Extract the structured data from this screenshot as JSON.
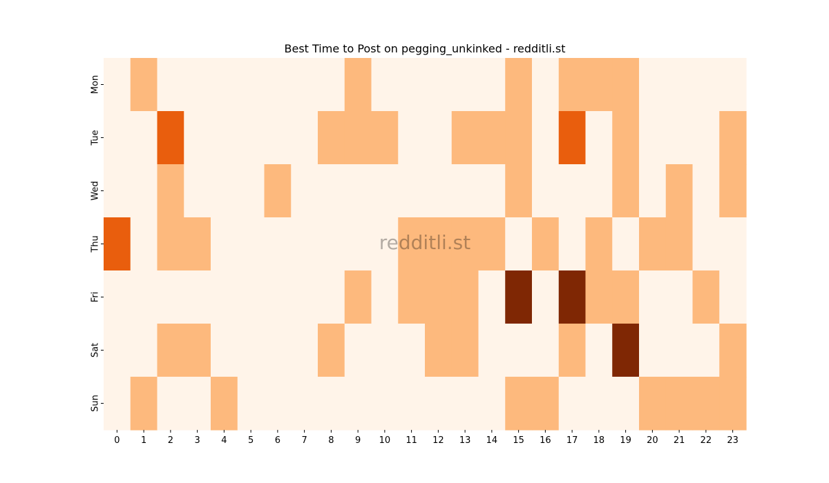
{
  "chart_data": {
    "type": "heatmap",
    "title": "Best Time to Post on pegging_unkinked - redditli.st",
    "watermark": "redditli.st",
    "x_categories": [
      "0",
      "1",
      "2",
      "3",
      "4",
      "5",
      "6",
      "7",
      "8",
      "9",
      "10",
      "11",
      "12",
      "13",
      "14",
      "15",
      "16",
      "17",
      "18",
      "19",
      "20",
      "21",
      "22",
      "23"
    ],
    "y_categories": [
      "Mon",
      "Tue",
      "Wed",
      "Thu",
      "Fri",
      "Sat",
      "Sun"
    ],
    "values": [
      [
        0,
        1,
        0,
        0,
        0,
        0,
        0,
        0,
        0,
        1,
        0,
        0,
        0,
        0,
        0,
        1,
        0,
        1,
        1,
        1,
        0,
        0,
        0,
        0
      ],
      [
        0,
        0,
        2,
        0,
        0,
        0,
        0,
        0,
        1,
        1,
        1,
        0,
        0,
        1,
        1,
        1,
        0,
        2,
        0,
        1,
        0,
        0,
        0,
        1
      ],
      [
        0,
        0,
        1,
        0,
        0,
        0,
        1,
        0,
        0,
        0,
        0,
        0,
        0,
        0,
        0,
        1,
        0,
        0,
        0,
        1,
        0,
        1,
        0,
        1
      ],
      [
        2,
        0,
        1,
        1,
        0,
        0,
        0,
        0,
        0,
        0,
        0,
        1,
        1,
        1,
        1,
        0,
        1,
        0,
        1,
        0,
        1,
        1,
        0,
        0
      ],
      [
        0,
        0,
        0,
        0,
        0,
        0,
        0,
        0,
        0,
        1,
        0,
        1,
        1,
        1,
        0,
        3,
        0,
        3,
        1,
        1,
        0,
        0,
        1,
        0
      ],
      [
        0,
        0,
        1,
        1,
        0,
        0,
        0,
        0,
        1,
        0,
        0,
        0,
        1,
        1,
        0,
        0,
        0,
        1,
        0,
        3,
        0,
        0,
        0,
        1
      ],
      [
        0,
        1,
        0,
        0,
        1,
        0,
        0,
        0,
        0,
        0,
        0,
        0,
        0,
        0,
        0,
        1,
        1,
        0,
        0,
        0,
        1,
        1,
        1,
        1
      ]
    ],
    "colormap": [
      "#fff4e9",
      "#fdb97d",
      "#e95e0d",
      "#7f2704"
    ],
    "grid": false,
    "legend": "none"
  }
}
